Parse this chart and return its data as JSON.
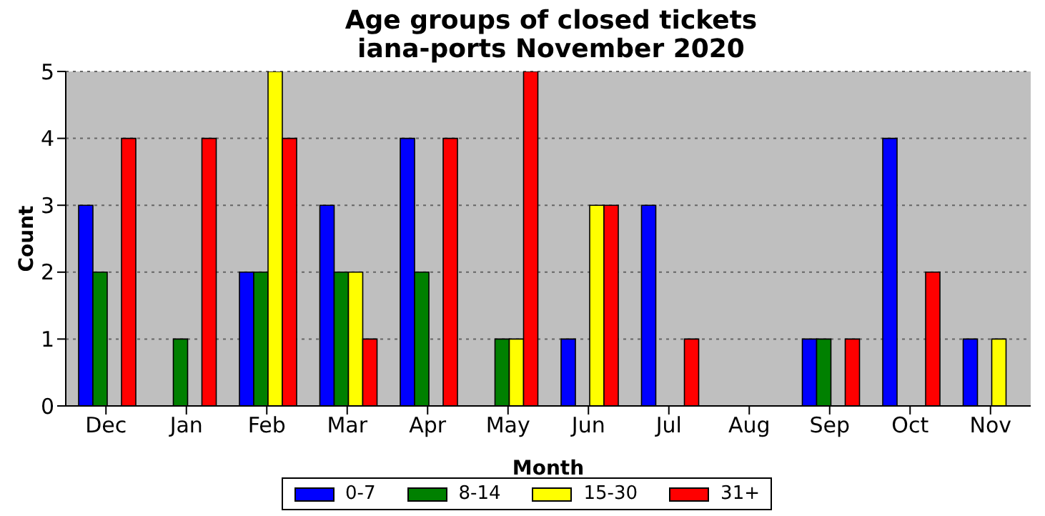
{
  "chart_data": {
    "type": "bar",
    "title": "Age groups of closed tickets\niana-ports November 2020",
    "xlabel": "Month",
    "ylabel": "Count",
    "categories": [
      "Dec",
      "Jan",
      "Feb",
      "Mar",
      "Apr",
      "May",
      "Jun",
      "Jul",
      "Aug",
      "Sep",
      "Oct",
      "Nov"
    ],
    "series": [
      {
        "name": "0-7",
        "color": "#0000ff",
        "values": [
          3,
          0,
          2,
          3,
          4,
          0,
          1,
          3,
          0,
          1,
          4,
          1
        ]
      },
      {
        "name": "8-14",
        "color": "#008000",
        "values": [
          2,
          1,
          2,
          2,
          2,
          1,
          0,
          0,
          0,
          1,
          0,
          0
        ]
      },
      {
        "name": "15-30",
        "color": "#ffff00",
        "values": [
          0,
          0,
          5,
          2,
          0,
          1,
          3,
          0,
          0,
          0,
          0,
          1
        ]
      },
      {
        "name": "31+",
        "color": "#ff0000",
        "values": [
          4,
          4,
          4,
          1,
          4,
          5,
          3,
          1,
          0,
          1,
          2,
          0
        ]
      }
    ],
    "ylim": [
      0,
      5
    ],
    "yticks": [
      0,
      1,
      2,
      3,
      4,
      5
    ],
    "grid": "y",
    "legend": "bottom"
  }
}
